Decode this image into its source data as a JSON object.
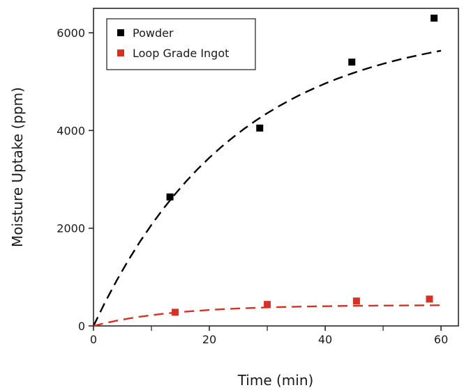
{
  "chart_data": {
    "type": "scatter",
    "title": "",
    "xlabel": "Time (min)",
    "ylabel": "Moisture Uptake (ppm)",
    "xlim": [
      0,
      63
    ],
    "ylim": [
      0,
      6500
    ],
    "x_ticks": [
      0,
      20,
      40,
      60
    ],
    "x_tick_labels": [
      "0",
      "20",
      "40",
      "60"
    ],
    "x_minor_ticks": [
      10,
      30,
      50
    ],
    "y_ticks": [
      0,
      2000,
      4000,
      6000
    ],
    "y_tick_labels": [
      "0",
      "2000",
      "4000",
      "6000"
    ],
    "grid": false,
    "legend_position": "top-left",
    "series": [
      {
        "name": "Powder",
        "color": "#000000",
        "marker": "square",
        "x": [
          13.2,
          28.7,
          44.6,
          58.8
        ],
        "y": [
          2640,
          4050,
          5400,
          6300
        ],
        "fit": "dashed exponential",
        "fit_x": [
          0,
          2,
          4,
          6,
          8,
          10,
          12,
          14,
          16,
          18,
          20,
          22,
          24,
          26,
          28,
          30,
          32,
          34,
          36,
          38,
          40,
          42,
          44,
          46,
          48,
          50,
          52,
          54,
          56,
          58,
          60
        ],
        "fit_y": [
          0,
          484,
          930,
          1341,
          1720,
          2069,
          2390,
          2686,
          2959,
          3211,
          3442,
          3656,
          3852,
          4034,
          4201,
          4355,
          4497,
          4628,
          4749,
          4860,
          4962,
          5056,
          5143,
          5223,
          5297,
          5365,
          5428,
          5486,
          5539,
          5588,
          5633
        ]
      },
      {
        "name": "Loop Grade Ingot",
        "color": "#d23325",
        "marker": "square",
        "x": [
          14.1,
          30.0,
          45.4,
          58.0
        ],
        "y": [
          280,
          440,
          510,
          550
        ],
        "fit": "dashed exponential",
        "fit_x": [
          0,
          2,
          4,
          6,
          8,
          10,
          12,
          14,
          16,
          18,
          20,
          22,
          24,
          26,
          28,
          30,
          32,
          34,
          36,
          38,
          40,
          42,
          44,
          46,
          48,
          50,
          52,
          54,
          56,
          58,
          60
        ],
        "fit_y": [
          0,
          58,
          108,
          151,
          188,
          220,
          248,
          272,
          293,
          311,
          327,
          340,
          352,
          362,
          371,
          379,
          385,
          391,
          396,
          400,
          404,
          407,
          410,
          412,
          415,
          416,
          418,
          419,
          421,
          422,
          423
        ]
      }
    ]
  }
}
